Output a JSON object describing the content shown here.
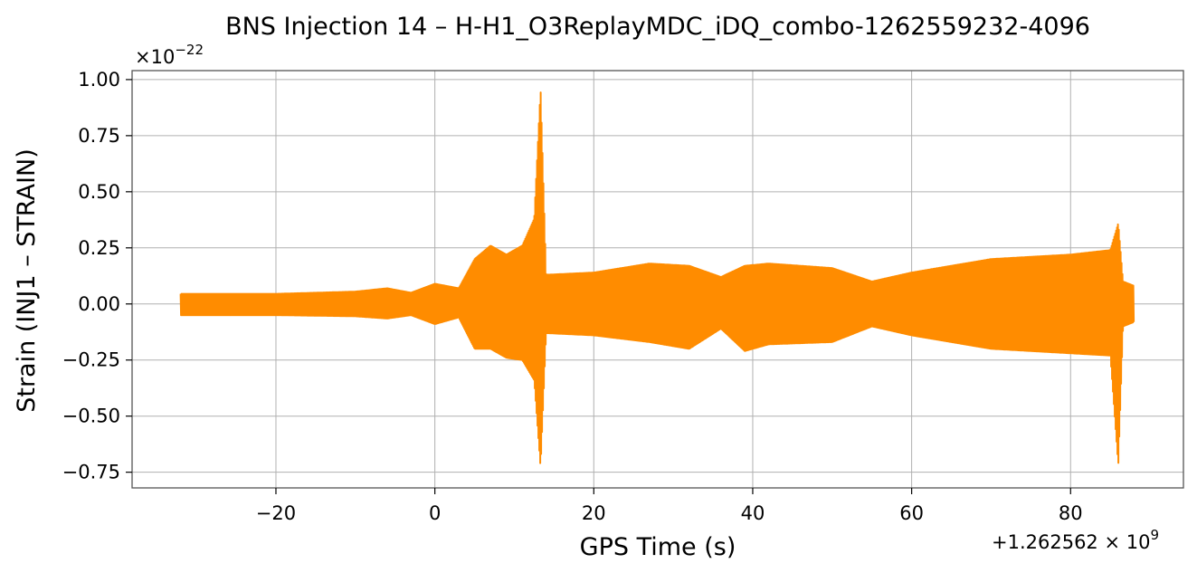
{
  "chart_data": {
    "type": "line",
    "title": "BNS Injection 14 – H-H1_O3ReplayMDC_iDQ_combo-1262559232-4096",
    "xlabel": "GPS Time (s)",
    "ylabel": "Strain (INJ1 – STRAIN)",
    "x_offset_label": "+1.262562 × 10",
    "x_offset_exp": "9",
    "y_scale_label": "×10",
    "y_scale_exp": "−22",
    "xlim": [
      -38.1,
      94.2
    ],
    "ylim": [
      -0.82,
      1.04
    ],
    "x_ticks": [
      -20,
      0,
      20,
      40,
      60,
      80
    ],
    "x_tick_labels": [
      "−20",
      "0",
      "20",
      "40",
      "60",
      "80"
    ],
    "y_ticks": [
      -0.75,
      -0.5,
      -0.25,
      0.0,
      0.25,
      0.5,
      0.75,
      1.0
    ],
    "y_tick_labels": [
      "−0.75",
      "−0.50",
      "−0.25",
      "0.00",
      "0.25",
      "0.50",
      "0.75",
      "1.00"
    ],
    "grid": true,
    "series": [
      {
        "color": "#ff8c00",
        "x_range": [
          -32.0,
          88.0
        ],
        "envelope": [
          {
            "x": -32.0,
            "upper": 0.045,
            "lower": -0.05
          },
          {
            "x": -20.0,
            "upper": 0.045,
            "lower": -0.05
          },
          {
            "x": -10.0,
            "upper": 0.055,
            "lower": -0.055
          },
          {
            "x": -6.0,
            "upper": 0.07,
            "lower": -0.065
          },
          {
            "x": -3.0,
            "upper": 0.05,
            "lower": -0.05
          },
          {
            "x": 0.0,
            "upper": 0.09,
            "lower": -0.09
          },
          {
            "x": 3.0,
            "upper": 0.07,
            "lower": -0.06
          },
          {
            "x": 5.0,
            "upper": 0.2,
            "lower": -0.2
          },
          {
            "x": 7.0,
            "upper": 0.26,
            "lower": -0.2
          },
          {
            "x": 9.0,
            "upper": 0.22,
            "lower": -0.24
          },
          {
            "x": 11.0,
            "upper": 0.26,
            "lower": -0.25
          },
          {
            "x": 12.5,
            "upper": 0.38,
            "lower": -0.34
          },
          {
            "x": 13.3,
            "upper": 0.96,
            "lower": -0.73
          },
          {
            "x": 14.0,
            "upper": 0.13,
            "lower": -0.13
          },
          {
            "x": 20.0,
            "upper": 0.14,
            "lower": -0.14
          },
          {
            "x": 27.0,
            "upper": 0.18,
            "lower": -0.17
          },
          {
            "x": 32.0,
            "upper": 0.17,
            "lower": -0.2
          },
          {
            "x": 36.0,
            "upper": 0.12,
            "lower": -0.11
          },
          {
            "x": 39.0,
            "upper": 0.17,
            "lower": -0.21
          },
          {
            "x": 42.0,
            "upper": 0.18,
            "lower": -0.18
          },
          {
            "x": 50.0,
            "upper": 0.16,
            "lower": -0.17
          },
          {
            "x": 55.0,
            "upper": 0.1,
            "lower": -0.1
          },
          {
            "x": 60.0,
            "upper": 0.14,
            "lower": -0.14
          },
          {
            "x": 70.0,
            "upper": 0.2,
            "lower": -0.2
          },
          {
            "x": 80.0,
            "upper": 0.22,
            "lower": -0.22
          },
          {
            "x": 85.0,
            "upper": 0.24,
            "lower": -0.23
          },
          {
            "x": 86.0,
            "upper": 0.36,
            "lower": -0.72
          },
          {
            "x": 86.6,
            "upper": 0.1,
            "lower": -0.1
          },
          {
            "x": 88.0,
            "upper": 0.08,
            "lower": -0.08
          }
        ]
      }
    ]
  }
}
